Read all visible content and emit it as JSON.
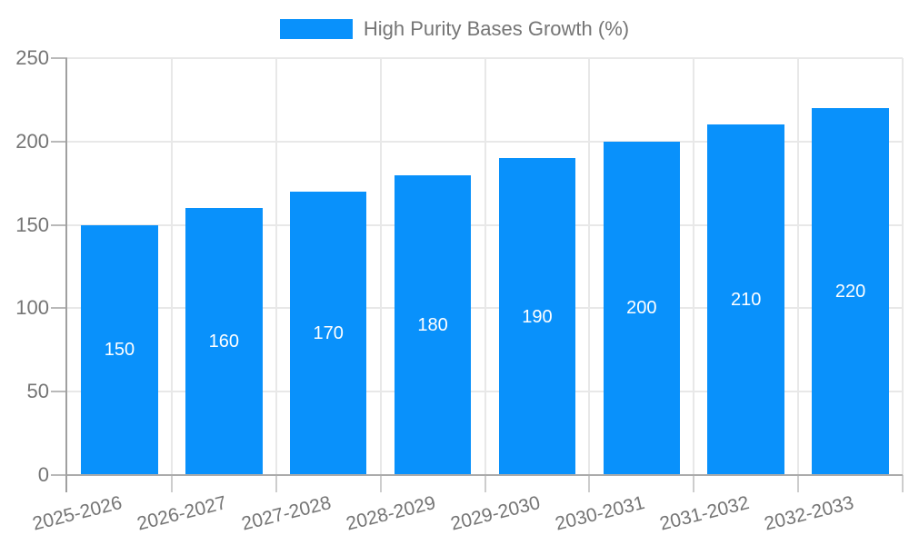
{
  "chart_data": {
    "type": "bar",
    "title": "",
    "legend": {
      "label": "High Purity Bases Growth (%)",
      "position": "top"
    },
    "categories": [
      "2025-2026",
      "2026-2027",
      "2027-2028",
      "2028-2029",
      "2029-2030",
      "2030-2031",
      "2031-2032",
      "2032-2033"
    ],
    "values": [
      150,
      160,
      170,
      180,
      190,
      200,
      210,
      220
    ],
    "data_labels": [
      "150",
      "160",
      "170",
      "180",
      "190",
      "200",
      "210",
      "220"
    ],
    "xlabel": "",
    "ylabel": "",
    "ylim": [
      0,
      250
    ],
    "yticks": [
      "0",
      "50",
      "100",
      "150",
      "200",
      "250"
    ],
    "grid": true,
    "colors": {
      "bar": "#0991fb",
      "data_label": "#ffffff",
      "axis_text": "#757575",
      "axis_line": "#a0a0a0",
      "x_axis_line": "#ababab",
      "grid_line": "#e8e8e8",
      "y_tick_line": "#b9b9b9",
      "x_tick_line": "#cdcdcd",
      "background": "#ffffff"
    }
  }
}
